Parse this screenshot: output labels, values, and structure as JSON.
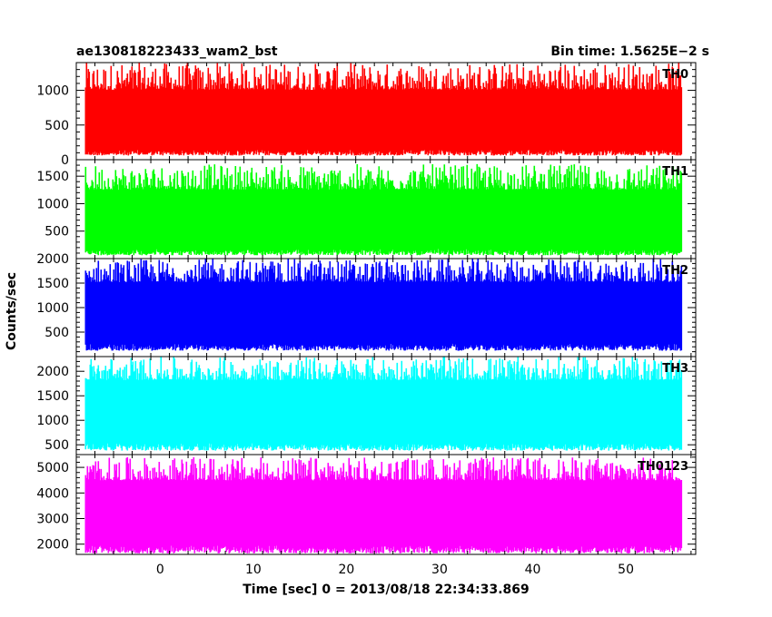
{
  "header": {
    "title": "ae130818223433_wam2_bst",
    "bin_time": "Bin time: 1.5625E−2 s"
  },
  "chart_data": {
    "type": "line",
    "title": "ae130818223433_wam2_bst",
    "xlabel": "Time [sec] 0 = 2013/08/18 22:34:33.869",
    "ylabel": "Counts/sec",
    "xlim": [
      -9.0,
      57.5
    ],
    "xticks": [
      0,
      10,
      20,
      30,
      40,
      50
    ],
    "x_start": -8.0,
    "x_end": 56.0,
    "panels": [
      {
        "name": "TH0",
        "color": "#ff0000",
        "ylim": [
          0,
          1400
        ],
        "yticks": [
          0,
          500,
          1000
        ],
        "x": [
          -8,
          -4,
          0,
          4,
          8,
          12,
          16,
          20,
          24,
          28,
          32,
          36,
          40,
          44,
          48,
          52,
          56
        ],
        "y": [
          540,
          520,
          560,
          530,
          550,
          540,
          525,
          545,
          535,
          550,
          530,
          540,
          560,
          535,
          545,
          530,
          540
        ],
        "noise_min": 60,
        "noise_max": 1400
      },
      {
        "name": "TH1",
        "color": "#00ff00",
        "ylim": [
          0,
          1800
        ],
        "yticks": [
          500,
          1000,
          1500
        ],
        "x": [
          -8,
          -4,
          0,
          4,
          8,
          12,
          16,
          20,
          24,
          28,
          32,
          36,
          40,
          44,
          48,
          52,
          56
        ],
        "y": [
          700,
          680,
          720,
          700,
          690,
          710,
          680,
          700,
          690,
          720,
          700,
          690,
          710,
          700,
          680,
          700,
          690
        ],
        "noise_min": 60,
        "noise_max": 1720
      },
      {
        "name": "TH2",
        "color": "#0000ff",
        "ylim": [
          0,
          2000
        ],
        "yticks": [
          500,
          1000,
          1500,
          2000
        ],
        "x": [
          -8,
          -4,
          0,
          4,
          8,
          12,
          16,
          20,
          24,
          28,
          32,
          36,
          40,
          44,
          48,
          52,
          56
        ],
        "y": [
          950,
          930,
          960,
          940,
          950,
          930,
          960,
          945,
          935,
          955,
          940,
          950,
          930,
          960,
          945,
          940,
          950
        ],
        "noise_min": 120,
        "noise_max": 2000
      },
      {
        "name": "TH3",
        "color": "#00ffff",
        "ylim": [
          300,
          2300
        ],
        "yticks": [
          500,
          1000,
          1500,
          2000
        ],
        "x": [
          -8,
          -4,
          0,
          4,
          8,
          12,
          16,
          20,
          24,
          28,
          32,
          36,
          40,
          44,
          48,
          52,
          56
        ],
        "y": [
          1250,
          1230,
          1260,
          1240,
          1250,
          1230,
          1260,
          1245,
          1235,
          1255,
          1240,
          1250,
          1230,
          1260,
          1245,
          1240,
          1250
        ],
        "noise_min": 380,
        "noise_max": 2300
      },
      {
        "name": "TH0123",
        "color": "#ff00ff",
        "ylim": [
          1600,
          5500
        ],
        "yticks": [
          2000,
          3000,
          4000,
          5000
        ],
        "x": [
          -8,
          -4,
          0,
          4,
          8,
          12,
          16,
          20,
          24,
          28,
          32,
          36,
          40,
          44,
          48,
          52,
          56
        ],
        "y": [
          3400,
          3380,
          3420,
          3400,
          3390,
          3410,
          3380,
          3400,
          3390,
          3420,
          3400,
          3390,
          3410,
          3400,
          3380,
          3400,
          3390
        ],
        "noise_min": 1640,
        "noise_max": 5400
      }
    ]
  }
}
